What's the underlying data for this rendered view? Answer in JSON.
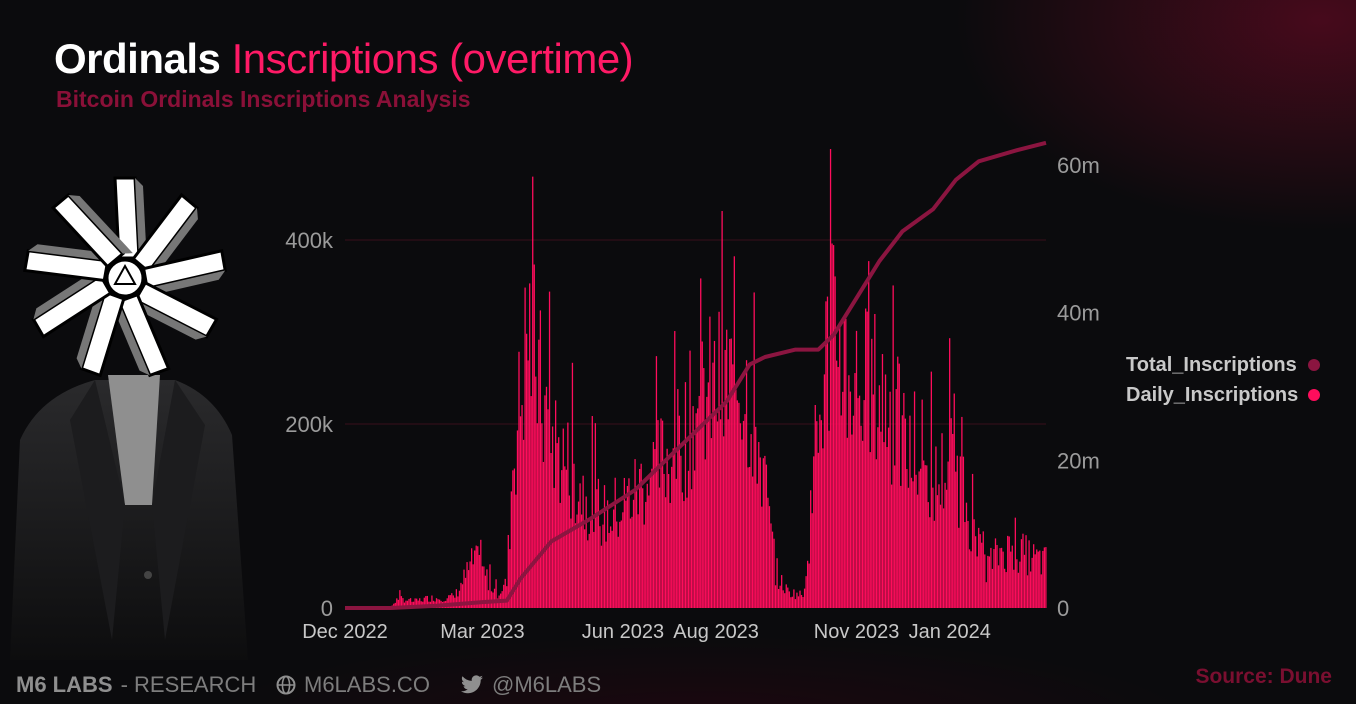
{
  "header": {
    "title_bold": "Ordinals",
    "title_accent": "Inscriptions (overtime)",
    "subtitle": "Bitcoin Ordinals Inscriptions Analysis"
  },
  "footer": {
    "brand": "M6 LABS",
    "brand_suffix": "- RESEARCH",
    "website": "M6LABS.CO",
    "twitter": "@M6LABS",
    "source": "Source: Dune",
    "icons": [
      "globe-icon",
      "twitter-bird-icon"
    ]
  },
  "colors": {
    "background": "#0b0b0d",
    "daily_bar": "#ff0d5c",
    "total_line": "#8b1540",
    "title_accent": "#ff1a66",
    "subtitle": "#8a1038",
    "gridline": "#3a0f1c"
  },
  "chart_data": {
    "type": "bar",
    "title": "Ordinals Inscriptions (overtime)",
    "subtitle": "Bitcoin Ordinals Inscriptions Analysis",
    "x_ticks": [
      "Dec 2022",
      "Mar 2023",
      "Jun 2023",
      "Aug 2023",
      "Nov 2023",
      "Jan 2024"
    ],
    "x_tick_days": [
      0,
      90,
      182,
      243,
      335,
      396
    ],
    "x_range_days": [
      0,
      459
    ],
    "y_left": {
      "ticks": [
        0,
        200000,
        400000
      ],
      "tick_labels": [
        "0",
        "200k",
        "400k"
      ],
      "range": [
        0,
        400000
      ]
    },
    "y_right": {
      "ticks": [
        0,
        20000000,
        40000000,
        60000000
      ],
      "tick_labels": [
        "0",
        "20m",
        "40m",
        "60m"
      ],
      "range": [
        0,
        60000000
      ]
    },
    "grid": true,
    "legend": {
      "position": "right",
      "entries": [
        "Total_Inscriptions",
        "Daily_Inscriptions"
      ]
    },
    "series": [
      {
        "name": "Daily_Inscriptions",
        "type": "bar",
        "axis": "left",
        "color": "#ff0d5c",
        "points": [
          [
            0,
            0
          ],
          [
            30,
            1000
          ],
          [
            35,
            12000
          ],
          [
            45,
            8000
          ],
          [
            55,
            12000
          ],
          [
            65,
            12000
          ],
          [
            72,
            14000
          ],
          [
            85,
            60000
          ],
          [
            95,
            30000
          ],
          [
            100,
            18000
          ],
          [
            106,
            30000
          ],
          [
            110,
            180000
          ],
          [
            115,
            250000
          ],
          [
            120,
            340000
          ],
          [
            125,
            300000
          ],
          [
            130,
            240000
          ],
          [
            140,
            190000
          ],
          [
            150,
            160000
          ],
          [
            160,
            130000
          ],
          [
            170,
            110000
          ],
          [
            180,
            120000
          ],
          [
            190,
            140000
          ],
          [
            200,
            160000
          ],
          [
            210,
            180000
          ],
          [
            220,
            200000
          ],
          [
            230,
            240000
          ],
          [
            240,
            260000
          ],
          [
            250,
            270000
          ],
          [
            260,
            280000
          ],
          [
            268,
            230000
          ],
          [
            275,
            150000
          ],
          [
            282,
            40000
          ],
          [
            290,
            20000
          ],
          [
            300,
            15000
          ],
          [
            308,
            160000
          ],
          [
            315,
            300000
          ],
          [
            322,
            340000
          ],
          [
            330,
            280000
          ],
          [
            340,
            270000
          ],
          [
            350,
            260000
          ],
          [
            360,
            230000
          ],
          [
            370,
            180000
          ],
          [
            380,
            160000
          ],
          [
            388,
            150000
          ],
          [
            395,
            180000
          ],
          [
            400,
            170000
          ],
          [
            408,
            120000
          ],
          [
            415,
            70000
          ],
          [
            420,
            50000
          ],
          [
            430,
            70000
          ],
          [
            440,
            70000
          ],
          [
            450,
            60000
          ],
          [
            459,
            55000
          ]
        ]
      },
      {
        "name": "Total_Inscriptions",
        "type": "line",
        "axis": "right",
        "color": "#8b1540",
        "points": [
          [
            0,
            0
          ],
          [
            30,
            0
          ],
          [
            60,
            300000
          ],
          [
            90,
            800000
          ],
          [
            106,
            1000000
          ],
          [
            115,
            4000000
          ],
          [
            135,
            9000000
          ],
          [
            160,
            12000000
          ],
          [
            190,
            16000000
          ],
          [
            210,
            20000000
          ],
          [
            230,
            24000000
          ],
          [
            250,
            28000000
          ],
          [
            265,
            33000000
          ],
          [
            275,
            34000000
          ],
          [
            295,
            35000000
          ],
          [
            310,
            35000000
          ],
          [
            320,
            37000000
          ],
          [
            335,
            42000000
          ],
          [
            350,
            47000000
          ],
          [
            365,
            51000000
          ],
          [
            385,
            54000000
          ],
          [
            400,
            58000000
          ],
          [
            415,
            60500000
          ],
          [
            440,
            62000000
          ],
          [
            459,
            63000000
          ]
        ]
      }
    ]
  }
}
